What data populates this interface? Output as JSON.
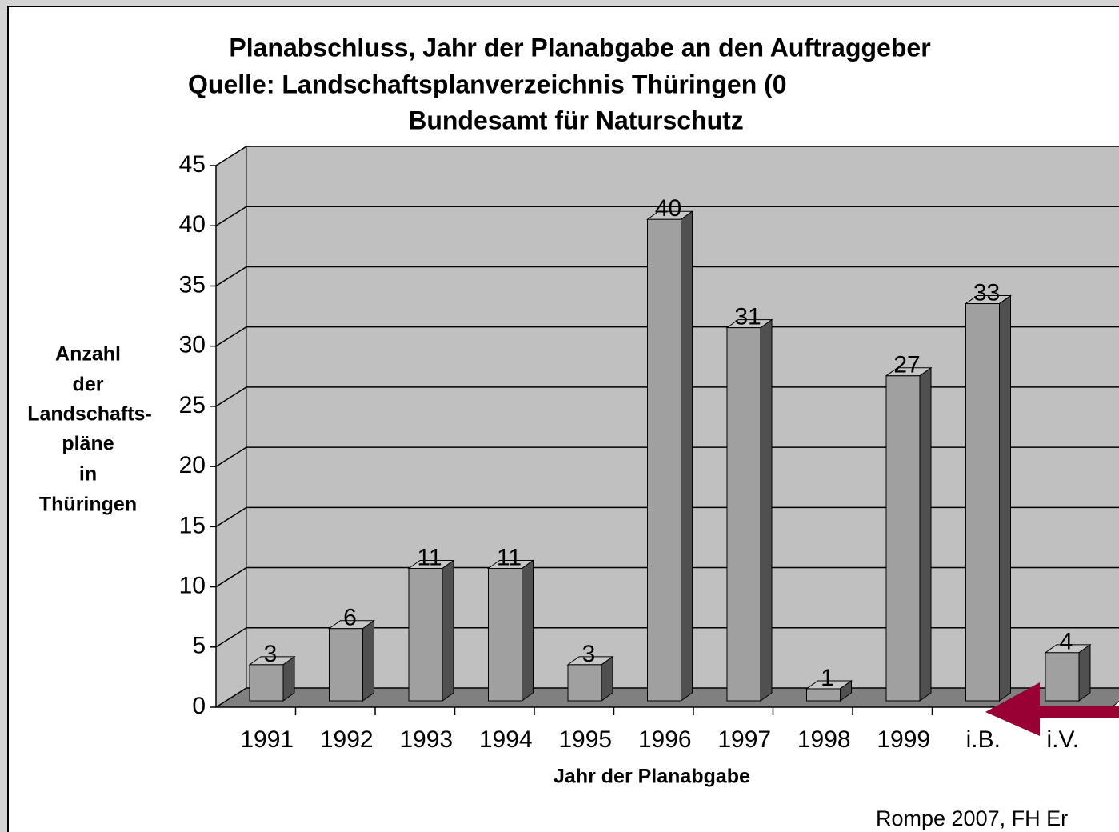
{
  "chart_data": {
    "type": "bar3d",
    "title": [
      "Planabschluss, Jahr der Planabgabe an den Auftraggeber",
      "Quelle: Landschaftsplanverzeichnis Thüringen (0",
      "Bundesamt für Naturschutz"
    ],
    "y_label": [
      "Anzahl",
      "der",
      "Landschafts-",
      "pläne",
      "in",
      "Thüringen"
    ],
    "x_label": "Jahr der Planabgabe",
    "footer": "Rompe 2007, FH Er",
    "categories": [
      "1991",
      "1992",
      "1993",
      "1994",
      "1995",
      "1996",
      "1997",
      "1998",
      "1999",
      "i.B.",
      "i.V."
    ],
    "values": [
      3,
      6,
      11,
      11,
      3,
      40,
      31,
      1,
      27,
      33,
      4
    ],
    "color": "#a0a0a0",
    "ylim": [
      0,
      45
    ],
    "yticks": [
      0,
      5,
      10,
      15,
      20,
      25,
      30,
      35,
      40,
      45
    ],
    "grid": true
  }
}
